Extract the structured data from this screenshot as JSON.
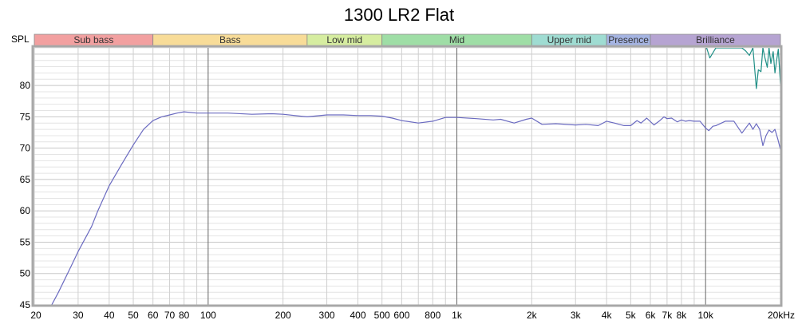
{
  "chart_data": {
    "type": "line",
    "title": "1300 LR2 Flat",
    "ylabel": "SPL",
    "x_scale": "log",
    "xlim": [
      20,
      20000
    ],
    "ylim": [
      45,
      86
    ],
    "grid": true,
    "y_ticks": [
      {
        "value": 45,
        "label": "45"
      },
      {
        "value": 50,
        "label": "50"
      },
      {
        "value": 55,
        "label": "55"
      },
      {
        "value": 60,
        "label": "60"
      },
      {
        "value": 65,
        "label": "65"
      },
      {
        "value": 70,
        "label": "70"
      },
      {
        "value": 75,
        "label": "75"
      },
      {
        "value": 80,
        "label": "80"
      }
    ],
    "x_ticks": [
      {
        "value": 20,
        "label": "20"
      },
      {
        "value": 30,
        "label": "30"
      },
      {
        "value": 40,
        "label": "40"
      },
      {
        "value": 50,
        "label": "50"
      },
      {
        "value": 60,
        "label": "60"
      },
      {
        "value": 70,
        "label": "70"
      },
      {
        "value": 80,
        "label": "80"
      },
      {
        "value": 100,
        "label": "100"
      },
      {
        "value": 200,
        "label": "200"
      },
      {
        "value": 300,
        "label": "300"
      },
      {
        "value": 400,
        "label": "400"
      },
      {
        "value": 500,
        "label": "500"
      },
      {
        "value": 600,
        "label": "600"
      },
      {
        "value": 800,
        "label": "800"
      },
      {
        "value": 1000,
        "label": "1k"
      },
      {
        "value": 2000,
        "label": "2k"
      },
      {
        "value": 3000,
        "label": "3k"
      },
      {
        "value": 4000,
        "label": "4k"
      },
      {
        "value": 5000,
        "label": "5k"
      },
      {
        "value": 6000,
        "label": "6k"
      },
      {
        "value": 7000,
        "label": "7k"
      },
      {
        "value": 8000,
        "label": "8k"
      },
      {
        "value": 10000,
        "label": "10k"
      },
      {
        "value": 20000,
        "label": "20kHz"
      }
    ],
    "bands": [
      {
        "name": "Sub bass",
        "from": 20,
        "to": 60,
        "color": "#f2a0a0"
      },
      {
        "name": "Bass",
        "from": 60,
        "to": 250,
        "color": "#f8dc98"
      },
      {
        "name": "Low mid",
        "from": 250,
        "to": 500,
        "color": "#d6eda0"
      },
      {
        "name": "Mid",
        "from": 500,
        "to": 2000,
        "color": "#9fdea6"
      },
      {
        "name": "Upper mid",
        "from": 2000,
        "to": 4000,
        "color": "#9fdcd2"
      },
      {
        "name": "Presence",
        "from": 4000,
        "to": 6000,
        "color": "#a5b4e2"
      },
      {
        "name": "Brilliance",
        "from": 6000,
        "to": 20000,
        "color": "#b6a4d2"
      }
    ],
    "series": [
      {
        "color": "#6a6ac0",
        "x": [
          23.5,
          25,
          28,
          30,
          34,
          36,
          40,
          45,
          50,
          55,
          60,
          65,
          70,
          75,
          80,
          90,
          100,
          120,
          150,
          180,
          200,
          250,
          300,
          350,
          400,
          450,
          500,
          550,
          600,
          700,
          800,
          900,
          1000,
          1200,
          1400,
          1500,
          1700,
          1900,
          2000,
          2200,
          2500,
          3000,
          3300,
          3700,
          4000,
          4300,
          4700,
          5000,
          5300,
          5500,
          5800,
          6200,
          6500,
          6800,
          7000,
          7300,
          7700,
          8000,
          8300,
          8600,
          9000,
          9500,
          10000,
          10300,
          10700,
          11000,
          12000,
          13000,
          14000,
          15000,
          15500,
          16000,
          16500,
          17000,
          17500,
          18000,
          18500,
          19000,
          19500,
          20000
        ],
        "y": [
          45,
          47,
          51,
          53.5,
          57.5,
          60,
          64,
          67.5,
          70.5,
          73,
          74.4,
          75,
          75.3,
          75.6,
          75.8,
          75.6,
          75.6,
          75.6,
          75.4,
          75.5,
          75.4,
          75.0,
          75.3,
          75.3,
          75.2,
          75.2,
          75.1,
          74.8,
          74.4,
          74.0,
          74.3,
          74.9,
          74.9,
          74.7,
          74.5,
          74.6,
          74.0,
          74.6,
          74.8,
          73.8,
          73.9,
          73.7,
          73.8,
          73.6,
          74.3,
          74.0,
          73.6,
          73.6,
          74.4,
          74.0,
          74.8,
          73.7,
          74.3,
          75.0,
          74.7,
          74.8,
          74.2,
          74.5,
          74.3,
          74.4,
          74.3,
          74.3,
          73.2,
          72.8,
          73.5,
          73.6,
          74.3,
          74.3,
          72.4,
          74.0,
          73.0,
          73.9,
          73.0,
          70.4,
          72.0,
          72.9,
          72.5,
          73.0,
          71.5,
          69.8
        ]
      },
      {
        "color": "#1f8f86",
        "x": [
          10100,
          10400,
          10700,
          11000,
          11500,
          12000,
          12500,
          13000,
          13500,
          14000,
          14500,
          15000,
          15500,
          16000,
          16300,
          16700,
          17000,
          17300,
          17700,
          18000,
          18300,
          18700,
          19000,
          19300,
          19600,
          20000
        ],
        "y": [
          86,
          84.4,
          85.2,
          86,
          86,
          86,
          86,
          86,
          86,
          86,
          85.5,
          84.8,
          86,
          79.5,
          82.5,
          82.2,
          86,
          84.5,
          82.9,
          86,
          83.5,
          85.4,
          82.0,
          84.0,
          85.8,
          80.2
        ]
      }
    ]
  }
}
